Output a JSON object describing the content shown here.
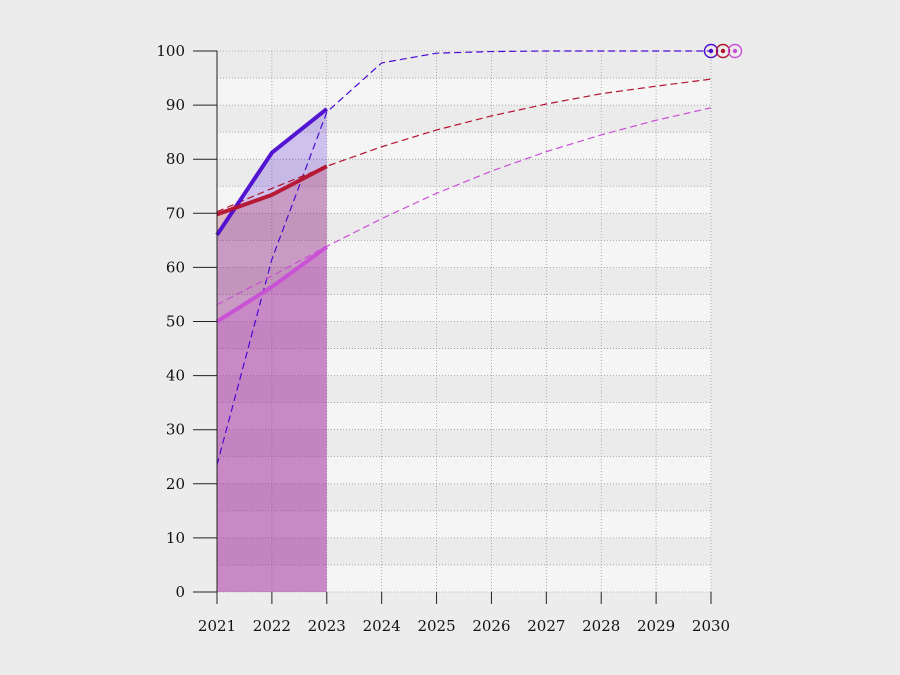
{
  "chart_data": {
    "type": "line",
    "title": "",
    "xlabel": "",
    "ylabel": "",
    "x_ticks": [
      "2021",
      "2022",
      "2023",
      "2024",
      "2025",
      "2026",
      "2027",
      "2028",
      "2029",
      "2030"
    ],
    "y_ticks": [
      "0",
      "10",
      "20",
      "30",
      "40",
      "50",
      "60",
      "70",
      "80",
      "90",
      "100"
    ],
    "xlim": [
      2021,
      2030
    ],
    "ylim": [
      0,
      100
    ],
    "grid": true,
    "shaded_range": [
      2021,
      2023
    ],
    "series": [
      {
        "color": "#4b0ad1",
        "actual": {
          "x": [
            2021,
            2022,
            2023
          ],
          "y": [
            66,
            81.2,
            89.3
          ]
        },
        "projection": {
          "x": [
            2021,
            2022,
            2023,
            2024,
            2025,
            2026,
            2027,
            2028,
            2029,
            2030
          ],
          "y": [
            23.5,
            61.5,
            88.7,
            97.8,
            99.6,
            99.9,
            100,
            100,
            100,
            100
          ]
        }
      },
      {
        "color": "#b5122e",
        "actual": {
          "x": [
            2021,
            2022,
            2023
          ],
          "y": [
            69.8,
            73.4,
            78.7
          ]
        },
        "projection": {
          "x": [
            2021,
            2022,
            2023,
            2024,
            2025,
            2026,
            2027,
            2028,
            2029,
            2030
          ],
          "y": [
            70.3,
            74.6,
            78.7,
            82.3,
            85.4,
            88,
            90.2,
            92.1,
            93.5,
            94.8
          ]
        }
      },
      {
        "color": "#c94fd6",
        "actual": {
          "x": [
            2021,
            2022,
            2023
          ],
          "y": [
            50,
            56.4,
            63.8
          ]
        },
        "projection": {
          "x": [
            2021,
            2022,
            2023,
            2024,
            2025,
            2026,
            2027,
            2028,
            2029,
            2030
          ],
          "y": [
            53.1,
            58.4,
            63.9,
            69,
            73.7,
            77.8,
            81.4,
            84.5,
            87.2,
            89.5
          ]
        }
      }
    ],
    "end_markers": [
      {
        "color": "#4b0ad1",
        "y": 100
      },
      {
        "color": "#b5122e",
        "y": 100
      },
      {
        "color": "#c94fd6",
        "y": 100
      }
    ]
  }
}
